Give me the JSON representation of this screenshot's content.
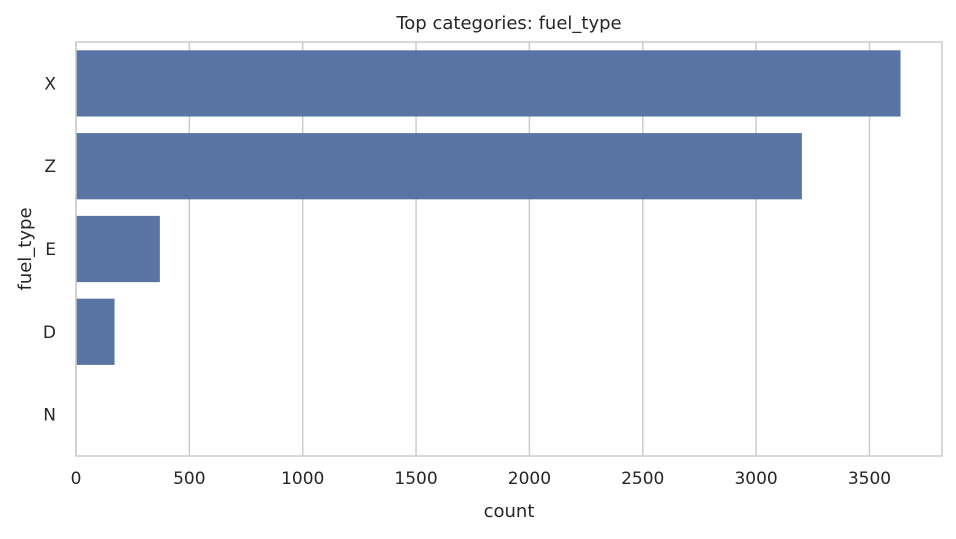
{
  "chart_data": {
    "type": "bar",
    "orientation": "horizontal",
    "title": "Top categories: fuel_type",
    "xlabel": "count",
    "ylabel": "fuel_type",
    "categories": [
      "X",
      "Z",
      "E",
      "D",
      "N"
    ],
    "values": [
      3637,
      3202,
      370,
      170,
      2
    ],
    "xlim": [
      0,
      3820
    ],
    "xticks": [
      0,
      500,
      1000,
      1500,
      2000,
      2500,
      3000,
      3500
    ],
    "grid": true,
    "colors": {
      "bar": "#5875a4",
      "grid": "#cccccc",
      "spine": "#cccccc",
      "text": "#262626"
    }
  }
}
